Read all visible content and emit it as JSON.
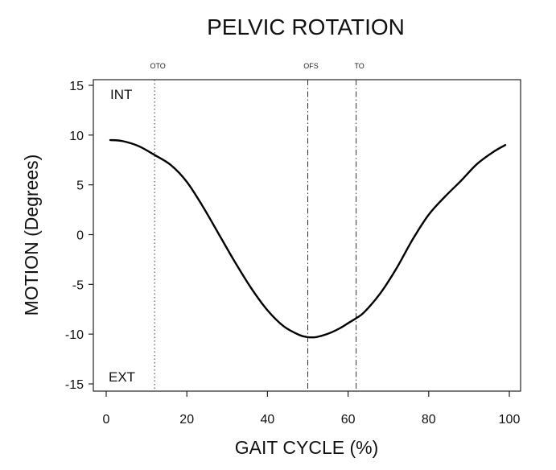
{
  "chart_data": {
    "type": "line",
    "title": "PELVIC ROTATION",
    "xlabel": "GAIT CYCLE (%)",
    "ylabel": "MOTION (Degrees)",
    "xlim": [
      0,
      100
    ],
    "ylim": [
      -15,
      15
    ],
    "xticks": [
      "0",
      "20",
      "40",
      "60",
      "80",
      "100"
    ],
    "yticks": [
      "15",
      "10",
      "5",
      "0",
      "-5",
      "-10",
      "-15"
    ],
    "grid": false,
    "series": [
      {
        "x": [
          1,
          4,
          8,
          12,
          16,
          20,
          24,
          28,
          32,
          36,
          40,
          44,
          48,
          50,
          52,
          54,
          56,
          58,
          60,
          62,
          64,
          68,
          72,
          76,
          80,
          84,
          88,
          92,
          96,
          99
        ],
        "y": [
          9.5,
          9.4,
          8.9,
          8.0,
          7.0,
          5.3,
          2.8,
          0.0,
          -2.8,
          -5.4,
          -7.6,
          -9.2,
          -10.1,
          -10.3,
          -10.3,
          -10.1,
          -9.8,
          -9.4,
          -8.9,
          -8.4,
          -7.8,
          -5.9,
          -3.4,
          -0.5,
          2.0,
          3.8,
          5.4,
          7.1,
          8.3,
          9.0
        ]
      }
    ],
    "events": [
      {
        "label": "OTO",
        "x": 12,
        "style": "dotted"
      },
      {
        "label": "OFS",
        "x": 50,
        "style": "dashdot"
      },
      {
        "label": "TO",
        "x": 62,
        "style": "dashdot"
      }
    ],
    "annotations": {
      "top_left": "INT",
      "bottom_left": "EXT"
    }
  }
}
